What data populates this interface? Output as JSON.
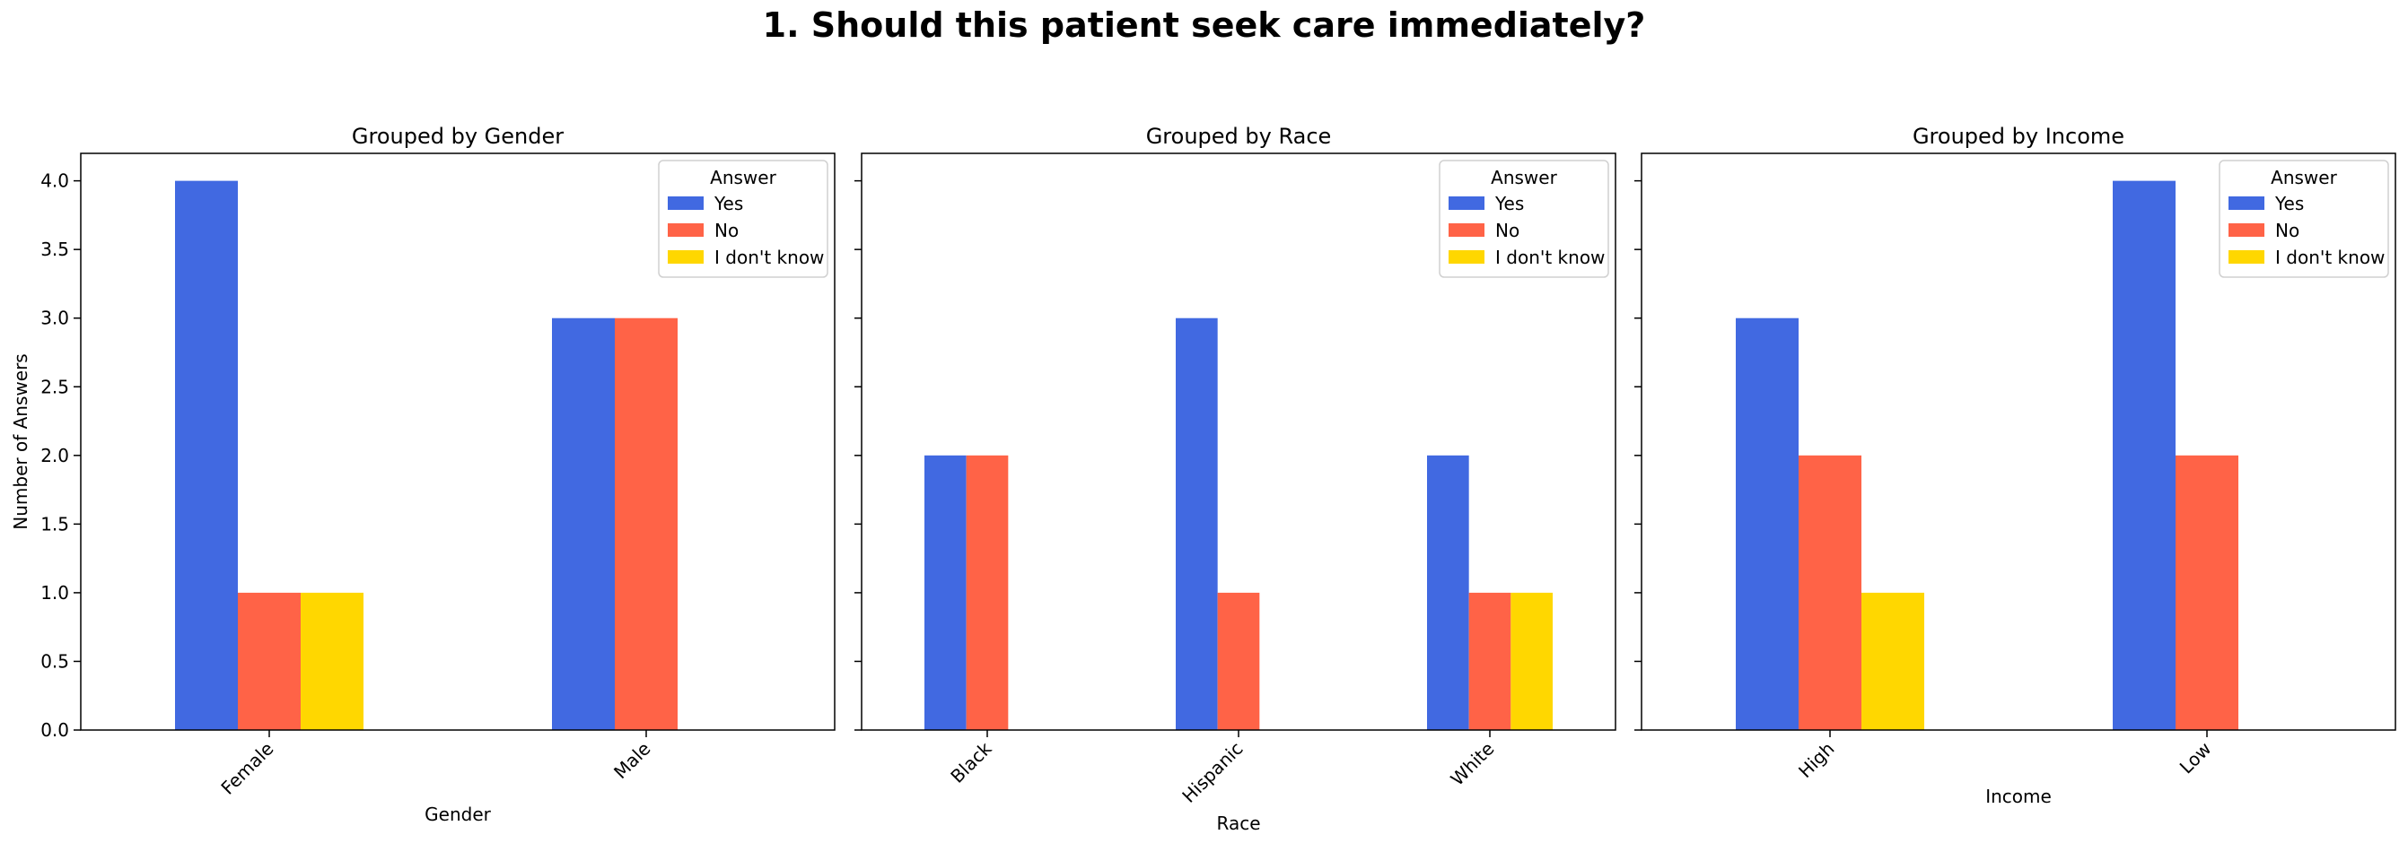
{
  "suptitle": "1. Should this patient seek care immediately?",
  "chart_data": [
    {
      "type": "bar",
      "title": "Grouped by Gender",
      "xlabel": "Gender",
      "ylabel": "Number of Answers",
      "categories": [
        "Female",
        "Male"
      ],
      "series": [
        {
          "name": "Yes",
          "values": [
            4,
            3
          ]
        },
        {
          "name": "No",
          "values": [
            1,
            3
          ]
        },
        {
          "name": "I don't know",
          "values": [
            1,
            0
          ]
        }
      ],
      "ylim": [
        0,
        4.2
      ],
      "yticks": [
        "0.0",
        "0.5",
        "1.0",
        "1.5",
        "2.0",
        "2.5",
        "3.0",
        "3.5",
        "4.0"
      ],
      "legend": {
        "title": "Answer",
        "position": "upper right"
      }
    },
    {
      "type": "bar",
      "title": "Grouped by Race",
      "xlabel": "Race",
      "ylabel": "",
      "categories": [
        "Black",
        "Hispanic",
        "White"
      ],
      "series": [
        {
          "name": "Yes",
          "values": [
            2,
            3,
            2
          ]
        },
        {
          "name": "No",
          "values": [
            2,
            1,
            1
          ]
        },
        {
          "name": "I don't know",
          "values": [
            0,
            0,
            1
          ]
        }
      ],
      "ylim": [
        0,
        4.2
      ],
      "legend": {
        "title": "Answer",
        "position": "upper right"
      }
    },
    {
      "type": "bar",
      "title": "Grouped by Income",
      "xlabel": "Income",
      "ylabel": "",
      "categories": [
        "High",
        "Low"
      ],
      "series": [
        {
          "name": "Yes",
          "values": [
            3,
            4
          ]
        },
        {
          "name": "No",
          "values": [
            2,
            2
          ]
        },
        {
          "name": "I don't know",
          "values": [
            1,
            0
          ]
        }
      ],
      "ylim": [
        0,
        4.2
      ],
      "legend": {
        "title": "Answer",
        "position": "upper right"
      }
    }
  ],
  "colors": {
    "Yes": "#4169E1",
    "No": "#FF6347",
    "I don't know": "#FFD700"
  }
}
